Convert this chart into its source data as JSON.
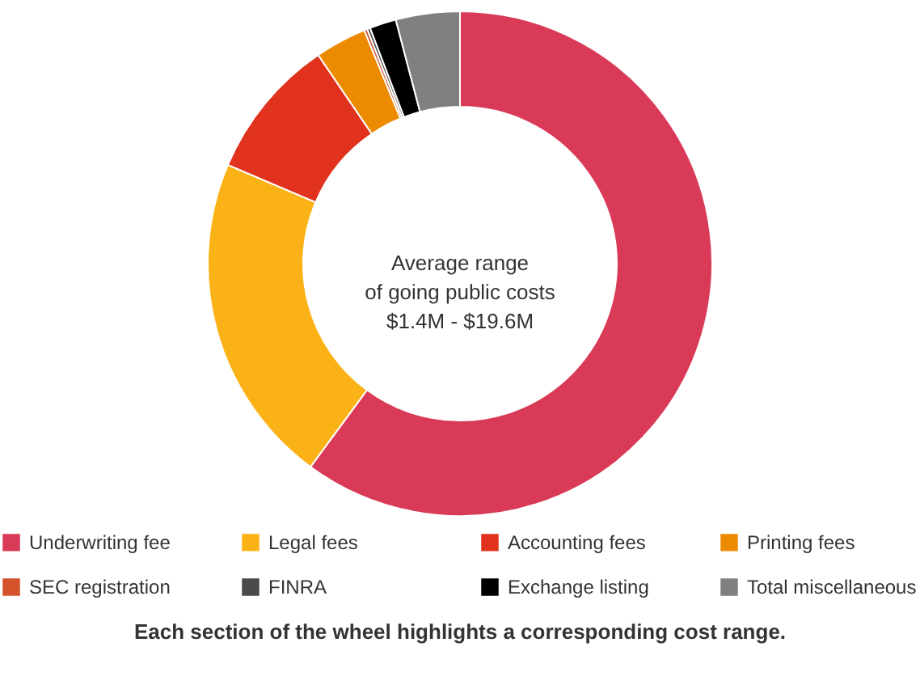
{
  "chart_data": {
    "type": "donut",
    "title": "Average range\nof going public costs\n$1.4M - $19.6M",
    "categories": [
      "Underwriting fee",
      "Legal fees",
      "Accounting fees",
      "Printing fees",
      "SEC registration",
      "FINRA",
      "Exchange listing",
      "Total miscellaneous"
    ],
    "values": [
      60.1,
      21.3,
      9.1,
      3.3,
      0.2,
      0.2,
      1.7,
      4.1
    ],
    "colors": [
      "#d93a57",
      "#fbb216",
      "#e0321c",
      "#ec8b00",
      "#d4532a",
      "#4a4a4a",
      "#000000",
      "#808080"
    ],
    "legend": "bottom",
    "annotations": [
      "Each section of the wheel highlights a corresponding cost range."
    ]
  }
}
